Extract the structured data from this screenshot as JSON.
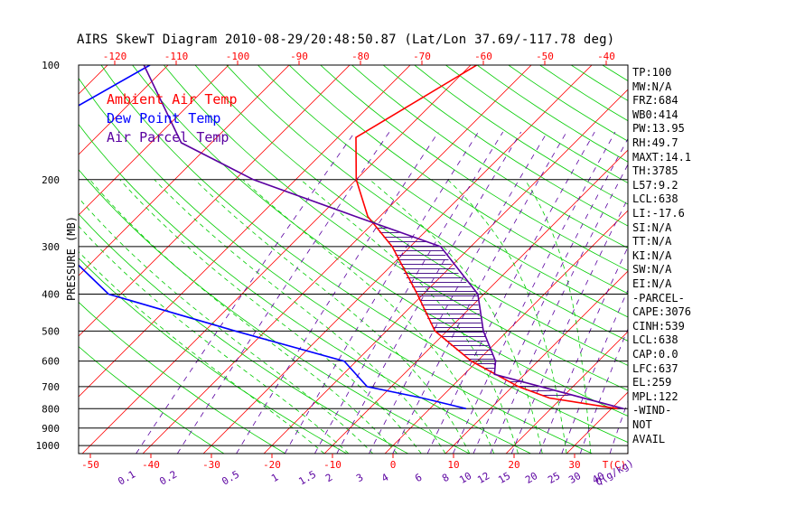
{
  "title": "AIRS SkewT Diagram 2010-08-29/20:48:50.87 (Lat/Lon 37.69/-117.78 deg)",
  "chart_data": {
    "type": "skewt",
    "ylabel": "PRESSURE (MB)",
    "xlabel": "T(C)",
    "mixing_label": "Q(g/kg)",
    "top_temp_ticks": [
      "-120",
      "-110",
      "-100",
      "-90",
      "-80",
      "-70",
      "-60",
      "-50",
      "-40"
    ],
    "bottom_temp_ticks": [
      "-50",
      "-40",
      "-30",
      "-20",
      "-10",
      "0",
      "10",
      "20",
      "30"
    ],
    "pressure_ticks": [
      "100",
      "200",
      "300",
      "400",
      "500",
      "600",
      "700",
      "800",
      "900",
      "1000"
    ],
    "mixing_ratio_ticks": [
      "0.1",
      "0.2",
      "0.5",
      "1",
      "1.5",
      "2",
      "3",
      "4",
      "6",
      "8",
      "10",
      "12",
      "15",
      "20",
      "25",
      "30",
      "40"
    ],
    "legend": [
      {
        "label": "Ambient Air Temp",
        "color": "#ff0000"
      },
      {
        "label": "Dew Point Temp",
        "color": "#0000ff"
      },
      {
        "label": "Air Parcel Temp",
        "color": "#5a00a0"
      }
    ],
    "series": [
      {
        "name": "Ambient Air Temp",
        "color": "#ff0000",
        "points": [
          [
            100,
            -49
          ],
          [
            155,
            -57
          ],
          [
            200,
            -50
          ],
          [
            250,
            -42
          ],
          [
            300,
            -33
          ],
          [
            400,
            -21
          ],
          [
            500,
            -12
          ],
          [
            600,
            -1
          ],
          [
            700,
            11
          ],
          [
            750,
            18
          ],
          [
            800,
            31
          ]
        ]
      },
      {
        "name": "Dew Point Temp",
        "color": "#0000ff",
        "points": [
          [
            100,
            -103
          ],
          [
            140,
            -110
          ],
          [
            200,
            -108
          ],
          [
            250,
            -98
          ],
          [
            300,
            -88
          ],
          [
            400,
            -72
          ],
          [
            500,
            -45
          ],
          [
            600,
            -22
          ],
          [
            700,
            -14
          ],
          [
            750,
            -3
          ],
          [
            800,
            6
          ]
        ]
      },
      {
        "name": "Air Parcel Temp",
        "color": "#5a00a0",
        "points": [
          [
            100,
            -104
          ],
          [
            160,
            -85
          ],
          [
            200,
            -67
          ],
          [
            250,
            -44
          ],
          [
            300,
            -25
          ],
          [
            400,
            -11
          ],
          [
            500,
            -4
          ],
          [
            600,
            3
          ],
          [
            650,
            5
          ],
          [
            800,
            32
          ]
        ]
      }
    ]
  },
  "stats": [
    "TP:100",
    "MW:N/A",
    "FRZ:684",
    "WB0:414",
    "PW:13.95",
    "RH:49.7",
    "MAXT:14.1",
    "TH:3785",
    "L57:9.2",
    "LCL:638",
    "LI:-17.6",
    "SI:N/A",
    "TT:N/A",
    "KI:N/A",
    "SW:N/A",
    "EI:N/A",
    "-PARCEL-",
    "CAPE:3076",
    "CINH:539",
    "LCL:638",
    "CAP:0.0",
    "LFC:637",
    "EL:259",
    "MPL:122",
    "-WIND-",
    "NOT",
    "AVAIL"
  ]
}
